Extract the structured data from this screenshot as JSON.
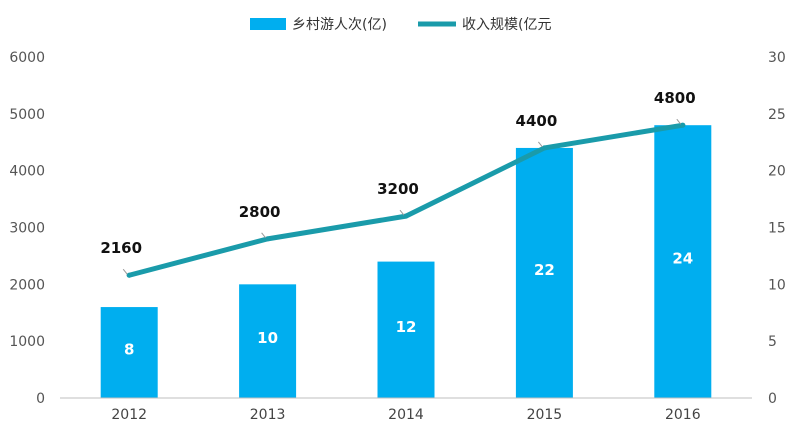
{
  "chart_data": {
    "type": "bar+line",
    "categories": [
      "2012",
      "2013",
      "2014",
      "2015",
      "2016"
    ],
    "series": [
      {
        "name": "乡村游人次(亿)",
        "type": "bar",
        "axis": "right",
        "values": [
          8,
          10,
          12,
          22,
          24
        ],
        "value_labels": [
          "8",
          "10",
          "12",
          "22",
          "24"
        ],
        "color": "#00AEEF"
      },
      {
        "name": "收入规模(亿元",
        "type": "line",
        "axis": "left",
        "values": [
          2160,
          2800,
          3200,
          4400,
          4800
        ],
        "value_labels": [
          "2160",
          "2800",
          "3200",
          "4400",
          "4800"
        ],
        "color": "#1A9BAA"
      }
    ],
    "y_left": {
      "range": [
        0,
        6000
      ],
      "ticks": [
        "0",
        "1000",
        "2000",
        "3000",
        "4000",
        "5000",
        "6000"
      ]
    },
    "y_right": {
      "range": [
        0,
        30
      ],
      "ticks": [
        "0",
        "5",
        "10",
        "15",
        "20",
        "25",
        "30"
      ]
    },
    "legend_position": "top-center",
    "grid": false
  }
}
